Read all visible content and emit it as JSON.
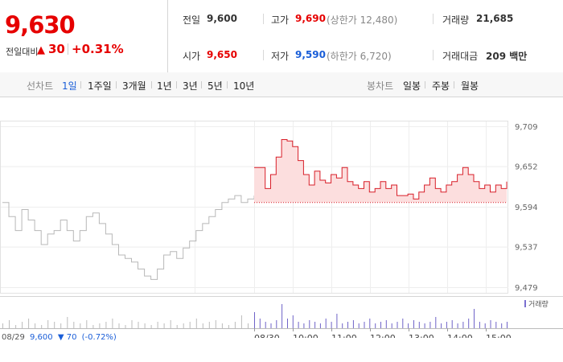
{
  "price": {
    "current": "9,630",
    "change_label": "전일대비",
    "change_value": "30",
    "change_pct": "+0.31%"
  },
  "stats": {
    "prev_close_label": "전일",
    "prev_close": "9,600",
    "high_label": "고가",
    "high": "9,690",
    "upper_limit_label": "(상한가 12,480)",
    "volume_label": "거래량",
    "volume": "21,685",
    "open_label": "시가",
    "open": "9,650",
    "low_label": "저가",
    "low": "9,590",
    "lower_limit_label": "(하한가 6,720)",
    "amount_label": "거래대금",
    "amount": "209 백만"
  },
  "line_tabs": {
    "heading": "선차트",
    "items": [
      "1일",
      "1주일",
      "3개월",
      "1년",
      "3년",
      "5년",
      "10년"
    ],
    "active": "1일"
  },
  "candle_tabs": {
    "heading": "봉차트",
    "items": [
      "일봉",
      "주봉",
      "월봉"
    ]
  },
  "chart_data": {
    "type": "line",
    "y_ticks": [
      "9,709",
      "9,652",
      "9,594",
      "9,537",
      "9,479"
    ],
    "y_range": [
      9479,
      9709
    ],
    "baseline": 9600,
    "volume_legend": "거래량",
    "x_ticks": [
      "08/30",
      "10:00",
      "11:00",
      "12:00",
      "13:00",
      "14:00",
      "15:00"
    ],
    "prev_day_series": [
      9600,
      9580,
      9560,
      9590,
      9575,
      9560,
      9540,
      9555,
      9560,
      9575,
      9560,
      9545,
      9560,
      9580,
      9585,
      9570,
      9555,
      9540,
      9525,
      9520,
      9515,
      9505,
      9495,
      9490,
      9505,
      9525,
      9530,
      9520,
      9535,
      9545,
      9560,
      9570,
      9580,
      9590,
      9600,
      9605,
      9610,
      9600,
      9605,
      9610
    ],
    "today_series": [
      9650,
      9650,
      9620,
      9640,
      9665,
      9690,
      9688,
      9680,
      9660,
      9640,
      9625,
      9645,
      9632,
      9628,
      9640,
      9635,
      9650,
      9630,
      9625,
      9620,
      9630,
      9615,
      9620,
      9630,
      9620,
      9625,
      9610,
      9610,
      9612,
      9605,
      9615,
      9625,
      9635,
      9620,
      9615,
      9625,
      9630,
      9640,
      9650,
      9640,
      9630,
      9620,
      9625,
      9615,
      9625,
      9620,
      9630
    ],
    "prev_day_volume": [
      3,
      5,
      2,
      4,
      6,
      3,
      2,
      5,
      4,
      3,
      7,
      4,
      3,
      5,
      2,
      3,
      4,
      6,
      3,
      2,
      5,
      4,
      3,
      2,
      4,
      3,
      5,
      2,
      3,
      4,
      6,
      3,
      4,
      5,
      3,
      2,
      4,
      8,
      3,
      2
    ],
    "today_volume": [
      10,
      6,
      4,
      3,
      5,
      15,
      6,
      8,
      4,
      3,
      5,
      4,
      3,
      6,
      4,
      9,
      3,
      4,
      5,
      3,
      4,
      6,
      3,
      4,
      5,
      3,
      4,
      6,
      3,
      5,
      4,
      3,
      4,
      7,
      3,
      4,
      5,
      3,
      4,
      6,
      12,
      4,
      3,
      5,
      4,
      3,
      4
    ]
  },
  "footer": {
    "date": "08/29",
    "close": "9,600",
    "arrow": "▼",
    "change": "70",
    "pct": "(-0.72%)"
  },
  "colors": {
    "up": "#e60000",
    "down": "#1a5ed8",
    "prev_line": "#b8b8b8",
    "today_line": "#d81e28",
    "today_fill": "#fcdede"
  }
}
